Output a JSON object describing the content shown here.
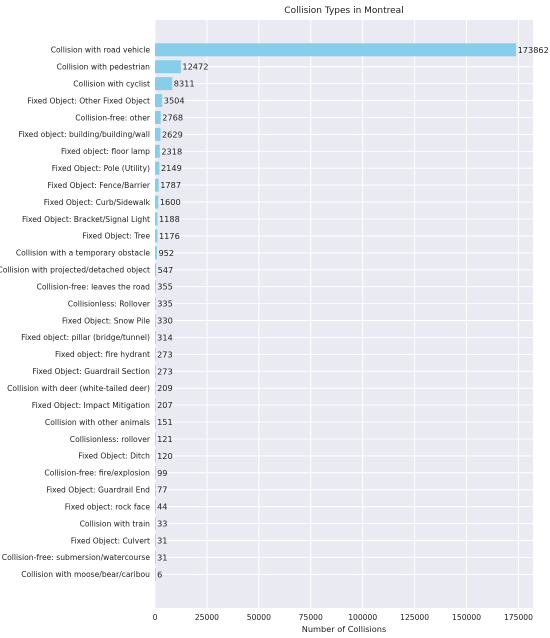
{
  "chart_data": {
    "type": "bar",
    "orientation": "horizontal",
    "title": "Collision Types in Montreal",
    "xlabel": "Number of Collisions",
    "ylabel": "",
    "xlim": [
      0,
      182000
    ],
    "xticks": [
      0,
      25000,
      50000,
      75000,
      100000,
      125000,
      150000,
      175000
    ],
    "grid": true,
    "bar_color": "#87ceeb",
    "background_color": "#eaeaf2",
    "categories": [
      "Collision with road vehicle",
      "Collision with pedestrian",
      "Collision with cyclist",
      "Fixed Object: Other Fixed Object",
      "Collision-free: other",
      "Fixed object: building/building/wall",
      "Fixed object: floor lamp",
      "Fixed Object: Pole (Utility)",
      "Fixed Object: Fence/Barrier",
      "Fixed Object: Curb/Sidewalk",
      "Fixed Object: Bracket/Signal Light",
      "Fixed Object: Tree",
      "Collision with a temporary obstacle",
      "Collision with projected/detached object",
      "Collision-free: leaves the road",
      "Collisionless: Rollover",
      "Fixed Object: Snow Pile",
      "Fixed object: pillar (bridge/tunnel)",
      "Fixed object: fire hydrant",
      "Fixed Object: Guardrail Section",
      "Collision with deer (white-tailed deer)",
      "Fixed Object: Impact Mitigation",
      "Collision with other animals",
      "Collisionless: rollover",
      "Fixed Object: Ditch",
      "Collision-free: fire/explosion",
      "Fixed Object: Guardrail End",
      "Fixed object: rock face",
      "Collision with train",
      "Fixed Object: Culvert",
      "Collision-free: submersion/watercourse",
      "Collision with moose/bear/caribou"
    ],
    "values": [
      173862,
      12472,
      8311,
      3504,
      2768,
      2629,
      2318,
      2149,
      1787,
      1600,
      1188,
      1176,
      952,
      547,
      355,
      335,
      330,
      314,
      273,
      273,
      209,
      207,
      151,
      121,
      120,
      99,
      77,
      44,
      33,
      31,
      31,
      6
    ]
  }
}
